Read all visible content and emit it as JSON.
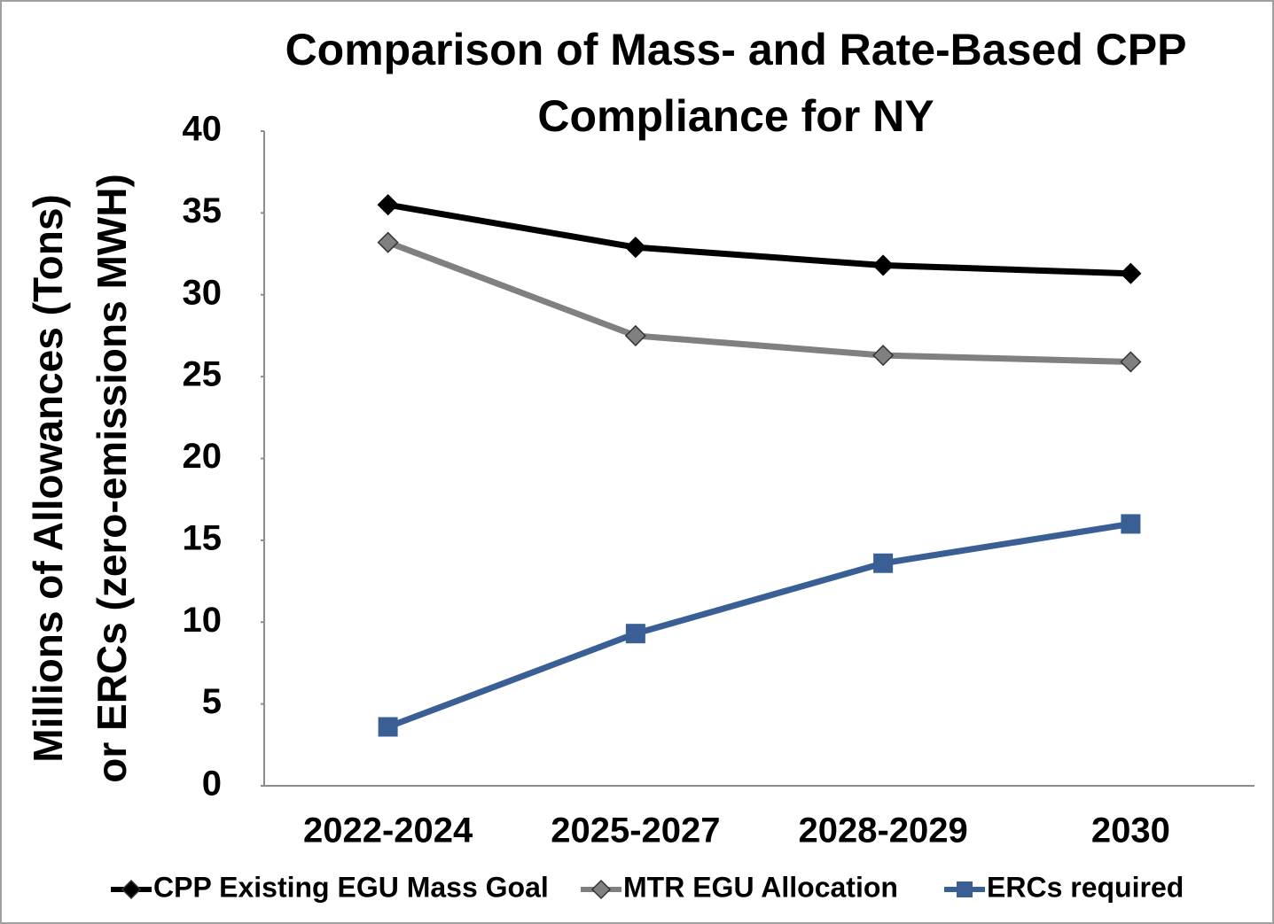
{
  "chart_data": {
    "type": "line",
    "title": [
      "Comparison of Mass- and Rate-Based CPP",
      "Compliance for NY"
    ],
    "y_label": [
      "Millions of Allowances (Tons)",
      "or ERCs (zero-emissions MWH)"
    ],
    "categories": [
      "2022-2024",
      "2025-2027",
      "2028-2029",
      "2030"
    ],
    "series": [
      {
        "name": "CPP Existing EGU Mass Goal",
        "color": "#000000",
        "marker": "diamond",
        "values": [
          35.5,
          32.9,
          31.8,
          31.3
        ]
      },
      {
        "name": "MTR EGU Allocation",
        "color": "#808080",
        "marker": "diamond",
        "values": [
          33.2,
          27.5,
          26.3,
          25.9
        ]
      },
      {
        "name": "ERCs required",
        "color": "#3a5f94",
        "marker": "square",
        "values": [
          3.6,
          9.3,
          13.6,
          16.0
        ]
      }
    ],
    "ylim": [
      0,
      40
    ],
    "yticks": [
      0,
      5,
      10,
      15,
      20,
      25,
      30,
      35,
      40
    ],
    "grid": false,
    "legend": "bottom"
  }
}
